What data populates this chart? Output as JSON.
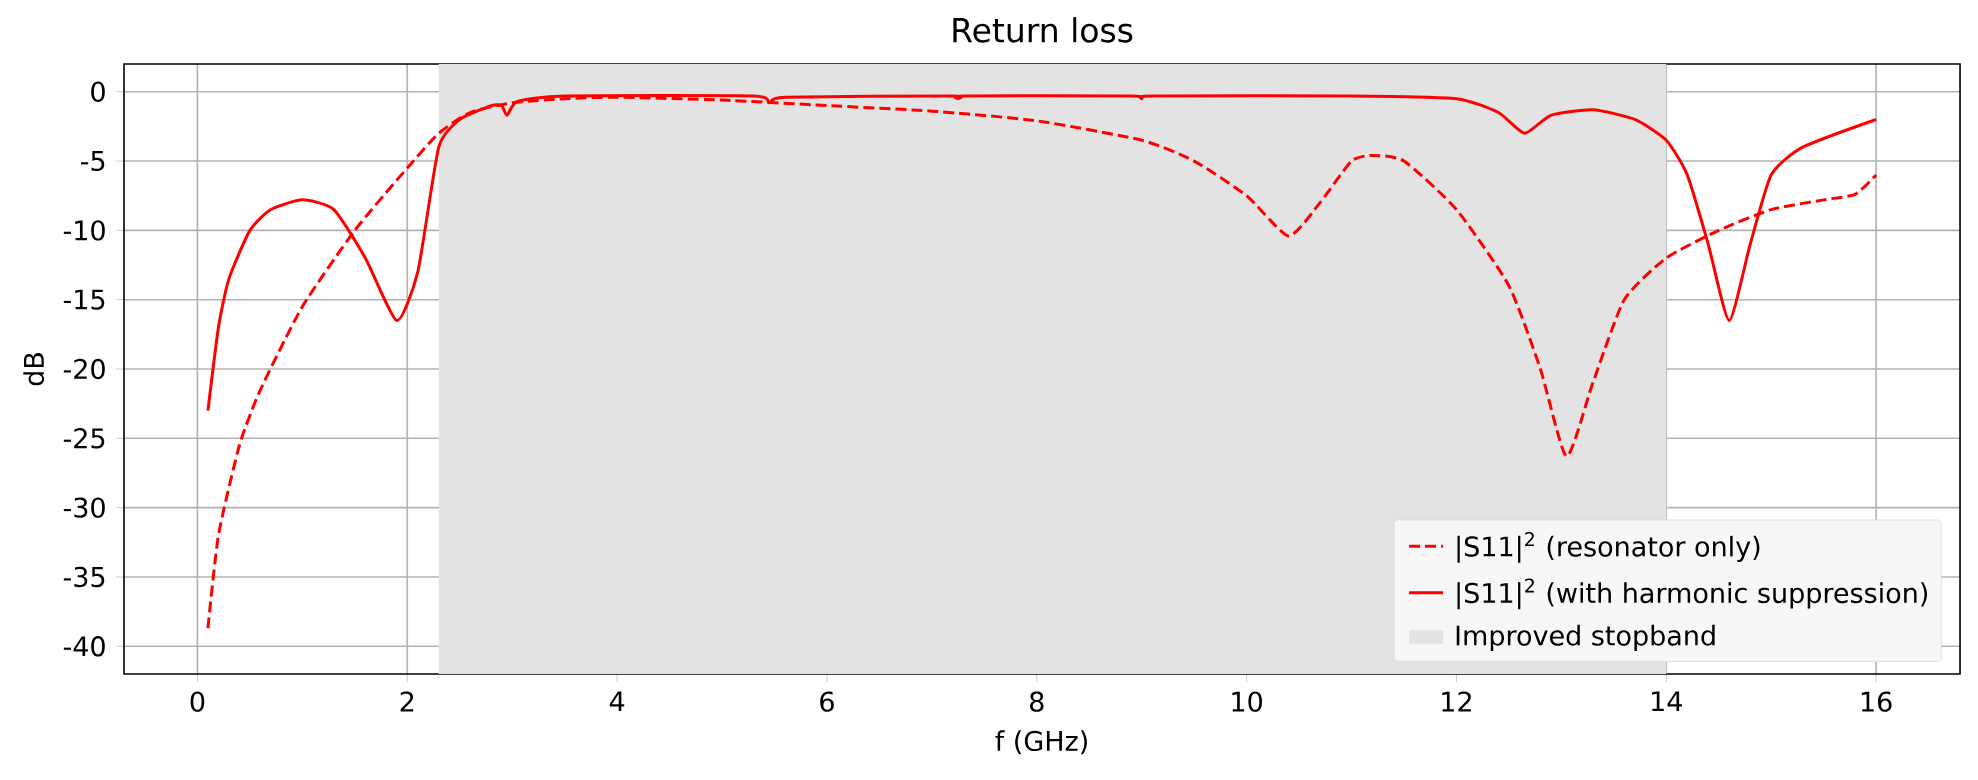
{
  "chart_data": {
    "type": "line",
    "title": "Return loss",
    "xlabel": "f (GHz)",
    "ylabel": "dB",
    "xlim": [
      -0.7,
      16.8
    ],
    "ylim": [
      -42,
      2
    ],
    "xticks": [
      0,
      2,
      4,
      6,
      8,
      10,
      12,
      14,
      16
    ],
    "yticks": [
      0,
      -5,
      -10,
      -15,
      -20,
      -25,
      -30,
      -35,
      -40
    ],
    "grid": true,
    "legend": "bottom right",
    "series": [
      {
        "name": "|S11|$^{2}$ (resonator only)",
        "color": "#ff0000",
        "line_style": "dashed",
        "x": [
          0.1,
          0.2,
          0.4,
          0.6,
          1.0,
          1.5,
          2.0,
          2.3,
          2.6,
          3.0,
          3.5,
          4,
          5,
          6,
          7,
          8,
          9,
          9.5,
          10,
          10.4,
          10.7,
          11,
          11.2,
          11.5,
          12,
          12.5,
          12.8,
          13.05,
          13.3,
          13.6,
          14,
          14.5,
          15,
          15.5,
          15.8,
          16
        ],
        "values": [
          -38.7,
          -32,
          -25.5,
          -21.5,
          -15.5,
          -10,
          -5.5,
          -3,
          -1.5,
          -0.8,
          -0.5,
          -0.4,
          -0.6,
          -1.0,
          -1.4,
          -2.1,
          -3.5,
          -5,
          -7.5,
          -10.4,
          -8,
          -5,
          -4.6,
          -5,
          -8.5,
          -14,
          -20,
          -26.3,
          -21,
          -15,
          -12,
          -10,
          -8.5,
          -7.8,
          -7.4,
          -6
        ]
      },
      {
        "name": "|S11|$^{2}$ (with harmonic suppression)",
        "color": "#ff0000",
        "line_style": "solid",
        "x": [
          0.1,
          0.2,
          0.3,
          0.5,
          0.7,
          1.0,
          1.3,
          1.6,
          1.9,
          2.1,
          2.3,
          2.5,
          2.8,
          2.9,
          2.95,
          3.05,
          3.5,
          5.3,
          5.45,
          5.6,
          7.2,
          7.25,
          7.3,
          8.9,
          9.0,
          9.1,
          11,
          12,
          12.4,
          12.65,
          12.9,
          13.3,
          13.7,
          14,
          14.2,
          14.4,
          14.6,
          14.8,
          15.0,
          15.3,
          16
        ],
        "values": [
          -23,
          -17,
          -13.5,
          -10,
          -8.5,
          -7.8,
          -8.5,
          -12,
          -16.5,
          -13,
          -4,
          -2,
          -1,
          -1,
          -1.7,
          -0.7,
          -0.3,
          -0.3,
          -0.8,
          -0.4,
          -0.3,
          -0.5,
          -0.3,
          -0.3,
          -0.5,
          -0.3,
          -0.3,
          -0.5,
          -1.5,
          -3,
          -1.7,
          -1.3,
          -2,
          -3.5,
          -6,
          -11,
          -16.5,
          -11,
          -6,
          -4,
          -2
        ]
      }
    ],
    "bands": [
      {
        "axis": "x",
        "from": 2.3,
        "to": 14,
        "label": "Improved stopband",
        "color": "#e3e3e3"
      }
    ]
  }
}
